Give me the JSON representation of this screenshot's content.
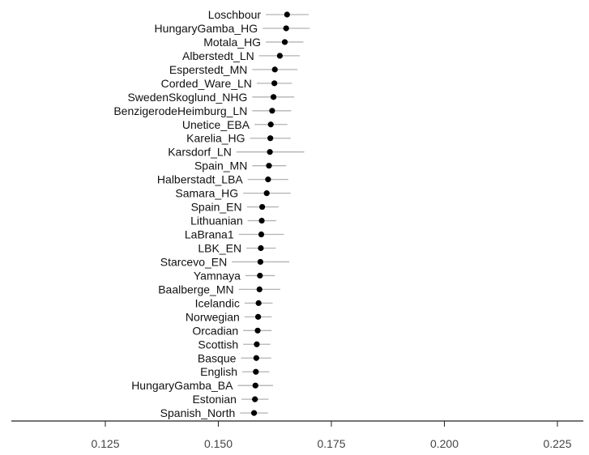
{
  "chart_data": {
    "type": "scatter",
    "orientation": "horizontal",
    "error_bars": true,
    "grid": false,
    "xlim": [
      0.105,
      0.23
    ],
    "xticks": [
      0.125,
      0.15,
      0.175,
      0.2,
      0.225
    ],
    "xtick_labels": [
      "0.125",
      "0.150",
      "0.175",
      "0.200",
      "0.225"
    ],
    "point_color": "#000000",
    "errorbar_color": "#b3b3b3",
    "points": [
      {
        "label": "Loschbour",
        "value": 0.1652,
        "lo": 0.1605,
        "hi": 0.17
      },
      {
        "label": "HungaryGamba_HG",
        "value": 0.165,
        "lo": 0.1598,
        "hi": 0.1702
      },
      {
        "label": "Motala_HG",
        "value": 0.1647,
        "lo": 0.1605,
        "hi": 0.1688
      },
      {
        "label": "Alberstedt_LN",
        "value": 0.1636,
        "lo": 0.159,
        "hi": 0.168
      },
      {
        "label": "Esperstedt_MN",
        "value": 0.1625,
        "lo": 0.1575,
        "hi": 0.1675
      },
      {
        "label": "Corded_Ware_LN",
        "value": 0.1624,
        "lo": 0.1585,
        "hi": 0.1663
      },
      {
        "label": "SwedenSkoglund_NHG",
        "value": 0.1622,
        "lo": 0.1575,
        "hi": 0.1668
      },
      {
        "label": "BenzigerodeHeimburg_LN",
        "value": 0.1619,
        "lo": 0.1575,
        "hi": 0.1661
      },
      {
        "label": "Unetice_EBA",
        "value": 0.1616,
        "lo": 0.158,
        "hi": 0.1653
      },
      {
        "label": "Karelia_HG",
        "value": 0.1615,
        "lo": 0.157,
        "hi": 0.166
      },
      {
        "label": "Karsdorf_LN",
        "value": 0.1614,
        "lo": 0.154,
        "hi": 0.169
      },
      {
        "label": "Spain_MN",
        "value": 0.1612,
        "lo": 0.1575,
        "hi": 0.165
      },
      {
        "label": "Halberstadt_LBA",
        "value": 0.161,
        "lo": 0.1565,
        "hi": 0.1655
      },
      {
        "label": "Samara_HG",
        "value": 0.1607,
        "lo": 0.1555,
        "hi": 0.166
      },
      {
        "label": "Spain_EN",
        "value": 0.1597,
        "lo": 0.1563,
        "hi": 0.1633
      },
      {
        "label": "Lithuanian",
        "value": 0.1596,
        "lo": 0.1565,
        "hi": 0.1628
      },
      {
        "label": "LaBrana1",
        "value": 0.1595,
        "lo": 0.1545,
        "hi": 0.1645
      },
      {
        "label": "LBK_EN",
        "value": 0.1594,
        "lo": 0.1562,
        "hi": 0.1627
      },
      {
        "label": "Starcevo_EN",
        "value": 0.1593,
        "lo": 0.153,
        "hi": 0.1657
      },
      {
        "label": "Yamnaya",
        "value": 0.1592,
        "lo": 0.156,
        "hi": 0.1625
      },
      {
        "label": "Baalberge_MN",
        "value": 0.1591,
        "lo": 0.1545,
        "hi": 0.1637
      },
      {
        "label": "Icelandic",
        "value": 0.1589,
        "lo": 0.1558,
        "hi": 0.162
      },
      {
        "label": "Norwegian",
        "value": 0.1588,
        "lo": 0.1558,
        "hi": 0.1618
      },
      {
        "label": "Orcadian",
        "value": 0.1587,
        "lo": 0.1555,
        "hi": 0.1618
      },
      {
        "label": "Scottish",
        "value": 0.1585,
        "lo": 0.1555,
        "hi": 0.1615
      },
      {
        "label": "Basque",
        "value": 0.1584,
        "lo": 0.155,
        "hi": 0.1617
      },
      {
        "label": "English",
        "value": 0.1583,
        "lo": 0.1553,
        "hi": 0.1613
      },
      {
        "label": "HungaryGamba_BA",
        "value": 0.1582,
        "lo": 0.1543,
        "hi": 0.1621
      },
      {
        "label": "Estonian",
        "value": 0.1581,
        "lo": 0.1551,
        "hi": 0.1611
      },
      {
        "label": "Spanish_North",
        "value": 0.1579,
        "lo": 0.1548,
        "hi": 0.161
      }
    ]
  }
}
